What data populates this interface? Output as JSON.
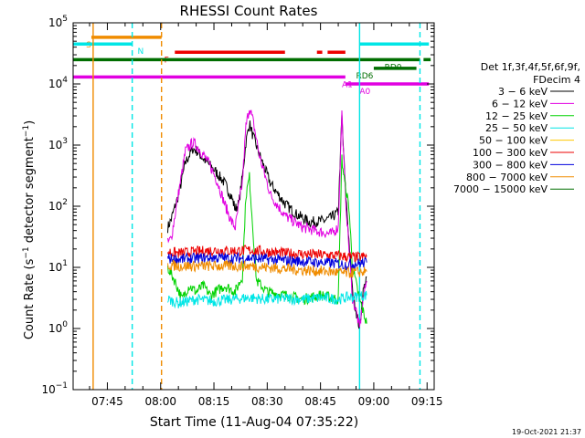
{
  "chart_data": {
    "type": "line",
    "title": "RHESSI Count Rates",
    "xlabel": "Start Time (11-Aug-04 07:35:22)",
    "ylabel": "Count Rate (s",
    "ylabel_sup": "−1",
    "ylabel_mid": " detector segment",
    "ylabel_tail": ")",
    "y_scale": "log",
    "ylim": [
      0.1,
      100000
    ],
    "xlim": [
      "07:35:22",
      "09:17:00"
    ],
    "x_ticks": [
      "07:45",
      "08:00",
      "08:15",
      "08:30",
      "08:45",
      "09:00",
      "09:15"
    ],
    "y_ticks": [
      {
        "value": 0.1,
        "base": "10",
        "exp": "−1"
      },
      {
        "value": 1,
        "base": "10",
        "exp": "0"
      },
      {
        "value": 10,
        "base": "10",
        "exp": "1"
      },
      {
        "value": 100,
        "base": "10",
        "exp": "2"
      },
      {
        "value": 1000,
        "base": "10",
        "exp": "3"
      },
      {
        "value": 10000,
        "base": "10",
        "exp": "4"
      },
      {
        "value": 100000,
        "base": "10",
        "exp": "5"
      }
    ],
    "legend_title": [
      "Det 1f,3f,4f,5f,6f,9f,",
      "FDecim 4"
    ],
    "legend_position": "right",
    "series": [
      {
        "name": "3 − 6 keV",
        "color": "#000000",
        "gap_after": "08:52",
        "points": [
          [
            "08:02",
            45
          ],
          [
            "08:03",
            62
          ],
          [
            "08:05",
            150
          ],
          [
            "08:07",
            520
          ],
          [
            "08:09",
            870
          ],
          [
            "08:10",
            820
          ],
          [
            "08:12",
            600
          ],
          [
            "08:15",
            400
          ],
          [
            "08:18",
            240
          ],
          [
            "08:20",
            140
          ],
          [
            "08:21",
            90
          ],
          [
            "08:22",
            110
          ],
          [
            "08:23",
            300
          ],
          [
            "08:24",
            1100
          ],
          [
            "08:25",
            2300
          ],
          [
            "08:26",
            1400
          ],
          [
            "08:28",
            650
          ],
          [
            "08:31",
            230
          ],
          [
            "08:35",
            110
          ],
          [
            "08:38",
            75
          ],
          [
            "08:42",
            55
          ],
          [
            "08:46",
            58
          ],
          [
            "08:48",
            65
          ],
          [
            "08:50",
            80
          ],
          [
            "08:51",
            3000
          ],
          [
            "08:52",
            200
          ],
          [
            "08:54",
            4
          ],
          [
            "08:55",
            2
          ],
          [
            "08:56",
            1
          ],
          [
            "08:57",
            4
          ],
          [
            "08:58",
            7
          ]
        ]
      },
      {
        "name": "6 − 12 keV",
        "color": "#e100e1",
        "gap_after": "08:52",
        "points": [
          [
            "08:02",
            25
          ],
          [
            "08:03",
            30
          ],
          [
            "08:05",
            160
          ],
          [
            "08:07",
            800
          ],
          [
            "08:09",
            1100
          ],
          [
            "08:10",
            1000
          ],
          [
            "08:12",
            700
          ],
          [
            "08:14",
            450
          ],
          [
            "08:16",
            250
          ],
          [
            "08:18",
            110
          ],
          [
            "08:20",
            55
          ],
          [
            "08:21",
            45
          ],
          [
            "08:23",
            240
          ],
          [
            "08:24",
            2000
          ],
          [
            "08:25",
            4200
          ],
          [
            "08:26",
            2500
          ],
          [
            "08:28",
            600
          ],
          [
            "08:31",
            150
          ],
          [
            "08:35",
            70
          ],
          [
            "08:40",
            45
          ],
          [
            "08:45",
            38
          ],
          [
            "08:48",
            35
          ],
          [
            "08:50",
            45
          ],
          [
            "08:51",
            3500
          ],
          [
            "08:52",
            150
          ],
          [
            "08:54",
            3
          ],
          [
            "08:55",
            2
          ],
          [
            "08:56",
            1
          ],
          [
            "08:57",
            3
          ],
          [
            "08:58",
            6
          ]
        ]
      },
      {
        "name": "12 − 25 keV",
        "color": "#00d200",
        "points": [
          [
            "08:02",
            10
          ],
          [
            "08:04",
            6
          ],
          [
            "08:06",
            3
          ],
          [
            "08:08",
            5
          ],
          [
            "08:10",
            4
          ],
          [
            "08:12",
            5
          ],
          [
            "08:14",
            3.5
          ],
          [
            "08:18",
            5
          ],
          [
            "08:21",
            4
          ],
          [
            "08:23",
            7
          ],
          [
            "08:24",
            150
          ],
          [
            "08:25",
            300
          ],
          [
            "08:26",
            40
          ],
          [
            "08:27",
            6
          ],
          [
            "08:30",
            4
          ],
          [
            "08:35",
            3.5
          ],
          [
            "08:40",
            3
          ],
          [
            "08:45",
            3.5
          ],
          [
            "08:50",
            3
          ],
          [
            "08:51",
            600
          ],
          [
            "08:52",
            200
          ],
          [
            "08:53",
            100
          ],
          [
            "08:54",
            10
          ],
          [
            "08:56",
            3
          ],
          [
            "08:58",
            1.2
          ]
        ]
      },
      {
        "name": "25 − 50 keV",
        "color": "#00e6e6",
        "points": [
          [
            "08:02",
            3
          ],
          [
            "08:05",
            2.6
          ],
          [
            "08:10",
            3
          ],
          [
            "08:15",
            2.8
          ],
          [
            "08:20",
            3
          ],
          [
            "08:25",
            3.2
          ],
          [
            "08:30",
            3
          ],
          [
            "08:35",
            3.1
          ],
          [
            "08:40",
            3
          ],
          [
            "08:45",
            3.2
          ],
          [
            "08:50",
            3
          ],
          [
            "08:52",
            3.2
          ],
          [
            "08:55",
            3.3
          ],
          [
            "08:58",
            3.5
          ]
        ]
      },
      {
        "name": "50 − 100 keV",
        "color": "#ffc800",
        "points": []
      },
      {
        "name": "100 − 300 keV",
        "color": "#ee0000",
        "points": [
          [
            "08:02",
            18
          ],
          [
            "08:05",
            17
          ],
          [
            "08:10",
            18
          ],
          [
            "08:15",
            19
          ],
          [
            "08:20",
            18.5
          ],
          [
            "08:25",
            19
          ],
          [
            "08:30",
            18
          ],
          [
            "08:35",
            17
          ],
          [
            "08:40",
            16.5
          ],
          [
            "08:45",
            16
          ],
          [
            "08:50",
            15.5
          ],
          [
            "08:52",
            15
          ],
          [
            "08:55",
            14.5
          ],
          [
            "08:58",
            15
          ]
        ]
      },
      {
        "name": "300 − 800 keV",
        "color": "#0000dd",
        "points": [
          [
            "08:02",
            14
          ],
          [
            "08:05",
            13.5
          ],
          [
            "08:10",
            14
          ],
          [
            "08:15",
            14.5
          ],
          [
            "08:20",
            14
          ],
          [
            "08:25",
            14.2
          ],
          [
            "08:30",
            13.5
          ],
          [
            "08:35",
            13
          ],
          [
            "08:40",
            12.5
          ],
          [
            "08:45",
            12
          ],
          [
            "08:50",
            11.5
          ],
          [
            "08:52",
            11
          ],
          [
            "08:55",
            11.5
          ],
          [
            "08:58",
            12
          ]
        ]
      },
      {
        "name": "800 − 7000 keV",
        "color": "#f08c00",
        "points": [
          [
            "08:02",
            11
          ],
          [
            "08:05",
            10.5
          ],
          [
            "08:10",
            10.5
          ],
          [
            "08:15",
            10.5
          ],
          [
            "08:20",
            10.5
          ],
          [
            "08:25",
            10.5
          ],
          [
            "08:30",
            10
          ],
          [
            "08:35",
            9.5
          ],
          [
            "08:40",
            9
          ],
          [
            "08:45",
            8.7
          ],
          [
            "08:50",
            8.3
          ],
          [
            "08:52",
            8
          ],
          [
            "08:55",
            8.3
          ],
          [
            "08:58",
            8.5
          ]
        ]
      },
      {
        "name": "7000 − 15000 keV",
        "color": "#006e00",
        "points": []
      }
    ],
    "status_bars": [
      {
        "label": "S",
        "color": "#f08c00",
        "level": 58000,
        "label_time": "07:39",
        "segments": [
          [
            "07:40:30",
            "08:00:15"
          ]
        ]
      },
      {
        "label": "N",
        "color": "#00e6e6",
        "level": 45000,
        "label_time": "07:53:30",
        "segments": [
          [
            "07:35:22",
            "07:52:00"
          ],
          [
            "08:56:00",
            "09:15:30"
          ]
        ]
      },
      {
        "label": "F",
        "color": "#ee0000",
        "level": 33000,
        "label_time": "08:01",
        "segments": [
          [
            "08:04",
            "08:35"
          ],
          [
            "08:44",
            "08:45:30"
          ],
          [
            "08:47",
            "08:52"
          ]
        ]
      },
      {
        "label": "RD0",
        "color": "#006e00",
        "level": 25000,
        "label_time": "09:03",
        "segments": [
          [
            "07:35:22",
            "09:13"
          ],
          [
            "09:14",
            "09:16"
          ]
        ]
      },
      {
        "label": "RD6",
        "color": "#006e00",
        "level": 18000,
        "label_time": "08:55",
        "segments": [
          [
            "09:00",
            "09:12"
          ]
        ]
      },
      {
        "label": "A1",
        "color": "#e100e1",
        "level": 13000,
        "label_time": "08:51",
        "segments": [
          [
            "07:35:22",
            "08:52:00"
          ]
        ]
      },
      {
        "label": "A0",
        "color": "#e100e1",
        "level": 10000,
        "label_time": "08:56",
        "segments": [
          [
            "08:52:00",
            "09:15:30"
          ]
        ]
      }
    ],
    "vlines": [
      {
        "time": "07:41:00",
        "color": "#f08c00",
        "style": "solid"
      },
      {
        "time": "07:52:00",
        "color": "#00e6e6",
        "style": "dashed"
      },
      {
        "time": "08:00:15",
        "color": "#f08c00",
        "style": "dashed"
      },
      {
        "time": "08:56:00",
        "color": "#00e6e6",
        "style": "solid"
      },
      {
        "time": "09:13:00",
        "color": "#00e6e6",
        "style": "dashed"
      }
    ],
    "timestamp": "19-Oct-2021 21:37"
  }
}
